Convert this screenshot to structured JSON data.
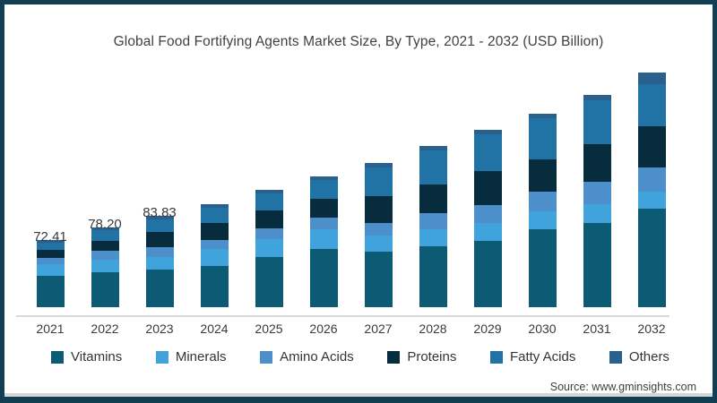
{
  "frame": {
    "border_color": "#123E52",
    "background": "#FFFFFF"
  },
  "title": "Global Food Fortifying Agents Market Size, By Type, 2021 - 2032 (USD Billion)",
  "source": "Source: www.gminsights.com",
  "chart_data": {
    "type": "bar",
    "stacked": true,
    "title": "Global Food Fortifying Agents Market Size, By Type, 2021 - 2032 (USD Billion)",
    "xlabel": "",
    "ylabel": "",
    "grid": false,
    "legend_position": "bottom",
    "y_axis_visible": false,
    "categories": [
      "2021",
      "2022",
      "2023",
      "2024",
      "2025",
      "2026",
      "2027",
      "2028",
      "2029",
      "2030",
      "2031",
      "2032"
    ],
    "totals": [
      72.41,
      78.2,
      83.83,
      89.4,
      96.1,
      102.5,
      108.9,
      116.9,
      124.5,
      132.2,
      141.1,
      151.7
    ],
    "value_labels": [
      "72.41",
      "78.20",
      "83.83",
      "",
      "",
      "",
      "",
      "",
      "",
      "",
      "",
      ""
    ],
    "series": [
      {
        "name": "Vitamins",
        "color": "#0D5A75",
        "values": [
          33.8,
          34.3,
          34.5,
          35.8,
          41.1,
          45.6,
          41.9,
          44.2,
          46.5,
          53.2,
          56.0,
          63.7
        ]
      },
      {
        "name": "Minerals",
        "color": "#41A3DC",
        "values": [
          12.6,
          12.3,
          11.5,
          14.8,
          14.7,
          15.4,
          12.2,
          12.3,
          12.6,
          12.2,
          12.5,
          11.0
        ]
      },
      {
        "name": "Amino Acids",
        "color": "#4D8FCA",
        "values": [
          6.8,
          8.8,
          9.0,
          7.8,
          8.8,
          9.1,
          9.5,
          11.7,
          12.6,
          13.5,
          14.9,
          15.6
        ]
      },
      {
        "name": "Proteins",
        "color": "#062C3E",
        "values": [
          8.7,
          9.7,
          14.0,
          14.8,
          14.7,
          14.7,
          20.3,
          20.8,
          23.9,
          22.0,
          25.0,
          26.6
        ]
      },
      {
        "name": "Fatty Acids",
        "color": "#2173A6",
        "values": [
          7.7,
          10.5,
          11.5,
          13.2,
          13.9,
          14.7,
          21.6,
          24.7,
          25.8,
          28.2,
          29.2,
          27.2
        ]
      },
      {
        "name": "Others",
        "color": "#29618C",
        "values": [
          2.9,
          2.6,
          3.3,
          3.1,
          2.9,
          2.8,
          3.4,
          3.2,
          3.1,
          3.1,
          3.6,
          7.5
        ]
      }
    ]
  }
}
